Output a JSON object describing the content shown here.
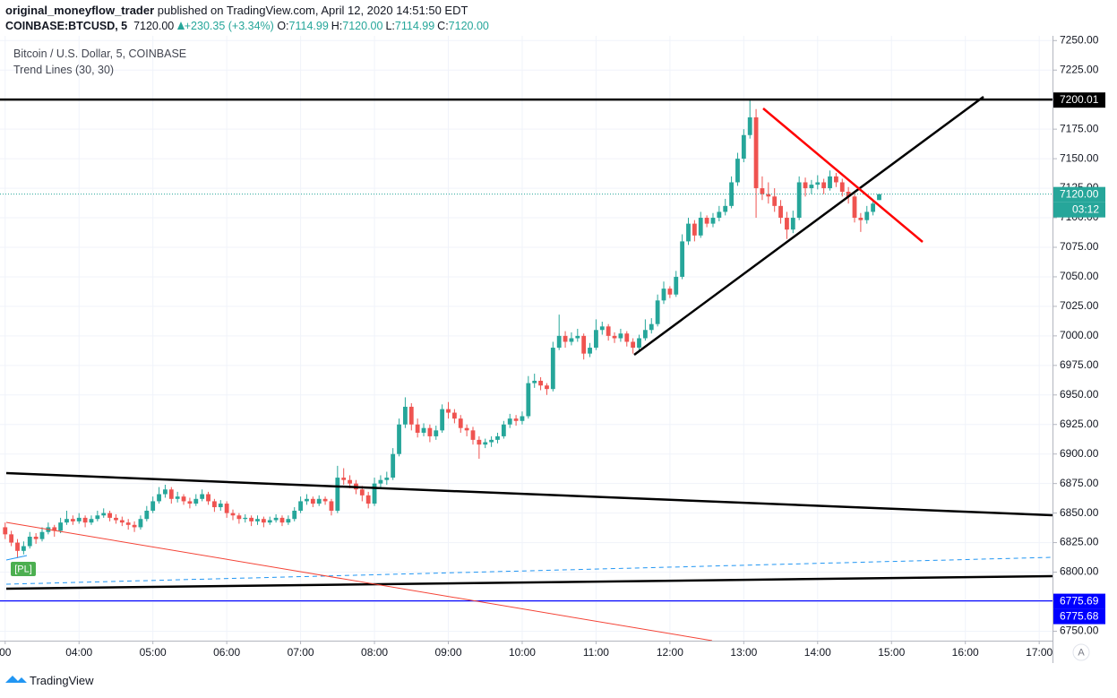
{
  "header": {
    "author": "original_moneyflow_trader",
    "published": "published on TradingView.com, April 12, 2020 14:51:50 EDT",
    "symbol": "COINBASE:BTCUSD, 5",
    "last": "7120.00",
    "change": "+230.35 (+3.34%)",
    "ohlc": [
      {
        "label": "O:",
        "value": "7114.99"
      },
      {
        "label": "H:",
        "value": "7120.00"
      },
      {
        "label": "L:",
        "value": "7114.99"
      },
      {
        "label": "C:",
        "value": "7120.00"
      }
    ]
  },
  "legend": {
    "title": "Bitcoin / U.S. Dollar, 5, COINBASE",
    "study": "Trend Lines (30, 30)"
  },
  "badge": "[PL]",
  "countdown": "03:12",
  "autoscale": "A",
  "footer": "TradingView",
  "chart_data": {
    "type": "candlestick",
    "up_color": "#26a69a",
    "down_color": "#ef5350",
    "grid": true,
    "ylim": [
      6742,
      7254
    ],
    "yticks": [
      {
        "value": 6750,
        "label": "6750.00"
      },
      {
        "value": 6775,
        "label": "6775.00"
      },
      {
        "value": 6800,
        "label": "6800.00"
      },
      {
        "value": 6825,
        "label": "6825.00"
      },
      {
        "value": 6850,
        "label": "6850.00"
      },
      {
        "value": 6875,
        "label": "6875.00"
      },
      {
        "value": 6900,
        "label": "6900.00"
      },
      {
        "value": 6925,
        "label": "6925.00"
      },
      {
        "value": 6950,
        "label": "6950.00"
      },
      {
        "value": 6975,
        "label": "6975.00"
      },
      {
        "value": 7000,
        "label": "7000.00"
      },
      {
        "value": 7025,
        "label": "7025.00"
      },
      {
        "value": 7050,
        "label": "7050.00"
      },
      {
        "value": 7075,
        "label": "7075.00"
      },
      {
        "value": 7100,
        "label": "7100.00"
      },
      {
        "value": 7125,
        "label": "7125.00"
      },
      {
        "value": 7150,
        "label": "7150.00"
      },
      {
        "value": 7175,
        "label": "7175.00"
      },
      {
        "value": 7200,
        "label": "7200.00"
      },
      {
        "value": 7225,
        "label": "7225.00"
      },
      {
        "value": 7250,
        "label": "7250.00"
      }
    ],
    "xlim": [
      2.93,
      17.18
    ],
    "xticks": [
      {
        "value": 3,
        "label": "00"
      },
      {
        "value": 4,
        "label": "04:00"
      },
      {
        "value": 5,
        "label": "05:00"
      },
      {
        "value": 6,
        "label": "06:00"
      },
      {
        "value": 7,
        "label": "07:00"
      },
      {
        "value": 8,
        "label": "08:00"
      },
      {
        "value": 9,
        "label": "09:00"
      },
      {
        "value": 10,
        "label": "10:00"
      },
      {
        "value": 11,
        "label": "11:00"
      },
      {
        "value": 12,
        "label": "12:00"
      },
      {
        "value": 13,
        "label": "13:00"
      },
      {
        "value": 14,
        "label": "14:00"
      },
      {
        "value": 15,
        "label": "15:00"
      },
      {
        "value": 16,
        "label": "16:00"
      },
      {
        "value": 17,
        "label": "17:00"
      }
    ],
    "levels": [
      {
        "value": 7200.01,
        "label": "7200.01",
        "color": "#000000"
      },
      {
        "value": 7120,
        "label": "7120.00",
        "color": "#26a69a",
        "dotted": true
      },
      {
        "value": 6775.69,
        "label": "6775.69",
        "color": "#0000ff"
      },
      {
        "value": 6775.68,
        "label": "6775.68",
        "color": "#0000ff"
      }
    ],
    "candles": [
      [
        6838,
        6842,
        6828,
        6832
      ],
      [
        6832,
        6835,
        6822,
        6825
      ],
      [
        6825,
        6828,
        6812,
        6818
      ],
      [
        6818,
        6826,
        6815,
        6822
      ],
      [
        6822,
        6834,
        6820,
        6830
      ],
      [
        6830,
        6833,
        6824,
        6828
      ],
      [
        6828,
        6838,
        6826,
        6834
      ],
      [
        6834,
        6842,
        6832,
        6838
      ],
      [
        6838,
        6840,
        6830,
        6835
      ],
      [
        6835,
        6846,
        6833,
        6842
      ],
      [
        6842,
        6852,
        6840,
        6845
      ],
      [
        6845,
        6848,
        6840,
        6843
      ],
      [
        6843,
        6850,
        6841,
        6846
      ],
      [
        6846,
        6848,
        6838,
        6842
      ],
      [
        6842,
        6848,
        6840,
        6845
      ],
      [
        6845,
        6852,
        6843,
        6848
      ],
      [
        6848,
        6854,
        6846,
        6850
      ],
      [
        6850,
        6852,
        6843,
        6846
      ],
      [
        6846,
        6849,
        6841,
        6844
      ],
      [
        6844,
        6847,
        6839,
        6842
      ],
      [
        6842,
        6845,
        6836,
        6840
      ],
      [
        6840,
        6843,
        6834,
        6838
      ],
      [
        6838,
        6848,
        6836,
        6845
      ],
      [
        6845,
        6856,
        6843,
        6852
      ],
      [
        6852,
        6864,
        6850,
        6860
      ],
      [
        6860,
        6872,
        6858,
        6866
      ],
      [
        6866,
        6874,
        6863,
        6870
      ],
      [
        6870,
        6872,
        6858,
        6862
      ],
      [
        6862,
        6868,
        6859,
        6864
      ],
      [
        6864,
        6866,
        6857,
        6860
      ],
      [
        6860,
        6863,
        6854,
        6858
      ],
      [
        6858,
        6866,
        6856,
        6862
      ],
      [
        6862,
        6870,
        6860,
        6866
      ],
      [
        6866,
        6868,
        6857,
        6860
      ],
      [
        6860,
        6862,
        6851,
        6855
      ],
      [
        6855,
        6861,
        6852,
        6858
      ],
      [
        6858,
        6860,
        6846,
        6850
      ],
      [
        6850,
        6853,
        6844,
        6848
      ],
      [
        6848,
        6850,
        6841,
        6845
      ],
      [
        6845,
        6849,
        6842,
        6846
      ],
      [
        6846,
        6848,
        6839,
        6843
      ],
      [
        6843,
        6848,
        6840,
        6845
      ],
      [
        6845,
        6847,
        6838,
        6842
      ],
      [
        6842,
        6847,
        6840,
        6844
      ],
      [
        6844,
        6849,
        6842,
        6846
      ],
      [
        6846,
        6848,
        6839,
        6842
      ],
      [
        6842,
        6848,
        6840,
        6845
      ],
      [
        6845,
        6855,
        6843,
        6852
      ],
      [
        6852,
        6864,
        6850,
        6860
      ],
      [
        6860,
        6866,
        6857,
        6862
      ],
      [
        6862,
        6864,
        6855,
        6858
      ],
      [
        6858,
        6865,
        6856,
        6862
      ],
      [
        6862,
        6864,
        6857,
        6860
      ],
      [
        6860,
        6862,
        6848,
        6852
      ],
      [
        6852,
        6890,
        6850,
        6880
      ],
      [
        6880,
        6888,
        6874,
        6878
      ],
      [
        6878,
        6882,
        6871,
        6875
      ],
      [
        6875,
        6878,
        6866,
        6870
      ],
      [
        6870,
        6873,
        6860,
        6865
      ],
      [
        6865,
        6868,
        6854,
        6858
      ],
      [
        6858,
        6880,
        6856,
        6875
      ],
      [
        6875,
        6882,
        6872,
        6878
      ],
      [
        6878,
        6885,
        6874,
        6880
      ],
      [
        6880,
        6905,
        6878,
        6900
      ],
      [
        6900,
        6930,
        6898,
        6925
      ],
      [
        6925,
        6948,
        6922,
        6940
      ],
      [
        6940,
        6943,
        6920,
        6925
      ],
      [
        6925,
        6930,
        6914,
        6918
      ],
      [
        6918,
        6926,
        6915,
        6922
      ],
      [
        6922,
        6925,
        6910,
        6915
      ],
      [
        6915,
        6924,
        6912,
        6920
      ],
      [
        6920,
        6942,
        6918,
        6938
      ],
      [
        6938,
        6944,
        6930,
        6935
      ],
      [
        6935,
        6938,
        6926,
        6930
      ],
      [
        6930,
        6933,
        6918,
        6922
      ],
      [
        6922,
        6925,
        6915,
        6920
      ],
      [
        6920,
        6923,
        6908,
        6912
      ],
      [
        6912,
        6915,
        6896,
        6908
      ],
      [
        6908,
        6913,
        6905,
        6910
      ],
      [
        6910,
        6915,
        6906,
        6912
      ],
      [
        6912,
        6918,
        6909,
        6915
      ],
      [
        6915,
        6928,
        6913,
        6925
      ],
      [
        6925,
        6934,
        6922,
        6930
      ],
      [
        6930,
        6933,
        6924,
        6928
      ],
      [
        6928,
        6936,
        6925,
        6932
      ],
      [
        6932,
        6966,
        6930,
        6960
      ],
      [
        6960,
        6968,
        6956,
        6962
      ],
      [
        6962,
        6965,
        6954,
        6958
      ],
      [
        6958,
        6960,
        6950,
        6955
      ],
      [
        6955,
        6995,
        6953,
        6990
      ],
      [
        6990,
        7018,
        6988,
        7000
      ],
      [
        7000,
        7004,
        6990,
        6995
      ],
      [
        6995,
        7003,
        6992,
        6998
      ],
      [
        6998,
        7006,
        6995,
        7000
      ],
      [
        7000,
        7002,
        6980,
        6985
      ],
      [
        6985,
        6994,
        6982,
        6990
      ],
      [
        6990,
        7014,
        6988,
        7005
      ],
      [
        7005,
        7012,
        7001,
        7008
      ],
      [
        7008,
        7010,
        6996,
        7000
      ],
      [
        7000,
        7003,
        6994,
        6998
      ],
      [
        6998,
        7006,
        6995,
        7002
      ],
      [
        7002,
        7004,
        6991,
        6995
      ],
      [
        6995,
        6998,
        6985,
        6990
      ],
      [
        6990,
        7001,
        6987,
        6998
      ],
      [
        6998,
        7014,
        6996,
        7005
      ],
      [
        7005,
        7015,
        7002,
        7010
      ],
      [
        7010,
        7035,
        7008,
        7030
      ],
      [
        7030,
        7046,
        7027,
        7040
      ],
      [
        7040,
        7042,
        7032,
        7035
      ],
      [
        7035,
        7055,
        7033,
        7050
      ],
      [
        7050,
        7086,
        7048,
        7080
      ],
      [
        7080,
        7100,
        7077,
        7095
      ],
      [
        7095,
        7098,
        7080,
        7085
      ],
      [
        7085,
        7105,
        7083,
        7100
      ],
      [
        7100,
        7102,
        7092,
        7095
      ],
      [
        7095,
        7104,
        7092,
        7100
      ],
      [
        7100,
        7110,
        7097,
        7105
      ],
      [
        7105,
        7116,
        7102,
        7110
      ],
      [
        7110,
        7135,
        7108,
        7130
      ],
      [
        7130,
        7155,
        7127,
        7150
      ],
      [
        7150,
        7175,
        7147,
        7170
      ],
      [
        7170,
        7200,
        7167,
        7185
      ],
      [
        7185,
        7192,
        7100,
        7125
      ],
      [
        7125,
        7135,
        7115,
        7120
      ],
      [
        7120,
        7130,
        7112,
        7118
      ],
      [
        7118,
        7125,
        7105,
        7110
      ],
      [
        7110,
        7115,
        7095,
        7100
      ],
      [
        7100,
        7105,
        7082,
        7090
      ],
      [
        7090,
        7106,
        7087,
        7100
      ],
      [
        7100,
        7135,
        7098,
        7130
      ],
      [
        7130,
        7134,
        7118,
        7125
      ],
      [
        7125,
        7132,
        7120,
        7128
      ],
      [
        7128,
        7136,
        7124,
        7130
      ],
      [
        7130,
        7133,
        7120,
        7125
      ],
      [
        7125,
        7140,
        7123,
        7135
      ],
      [
        7135,
        7138,
        7126,
        7130
      ],
      [
        7130,
        7133,
        7118,
        7122
      ],
      [
        7122,
        7126,
        7112,
        7118
      ],
      [
        7118,
        7120,
        7096,
        7100
      ],
      [
        7100,
        7104,
        7088,
        7098
      ],
      [
        7098,
        7110,
        7095,
        7105
      ],
      [
        7105,
        7114,
        7102,
        7112
      ],
      [
        7114.99,
        7120,
        7114.99,
        7120
      ]
    ]
  }
}
